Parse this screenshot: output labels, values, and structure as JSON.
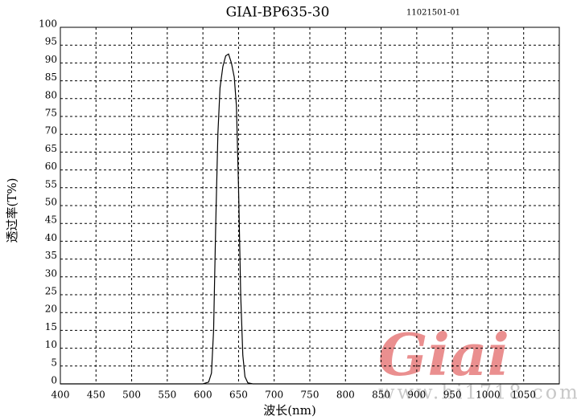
{
  "chart_data": {
    "type": "line",
    "title": "GIAI-BP635-30",
    "subtitle": "11021501-01",
    "x_label": "波长(nm)",
    "y_label": "透过率(T%)",
    "watermark": "Giai",
    "watermark_url": "www.hi1718.com",
    "x": [
      400,
      600,
      608,
      612,
      615,
      618,
      621,
      624,
      628,
      632,
      636,
      640,
      644,
      647,
      650,
      653,
      656,
      659,
      663,
      670,
      1100
    ],
    "series": [
      {
        "name": "T%",
        "color": "#000000",
        "values": [
          0,
          0,
          0.5,
          3,
          15,
          45,
          70,
          83,
          89,
          92,
          92.5,
          90,
          86,
          78,
          55,
          25,
          8,
          2,
          0.3,
          0,
          0
        ]
      }
    ],
    "xlim": [
      400,
      1100
    ],
    "xticks": [
      400,
      450,
      500,
      550,
      600,
      650,
      700,
      750,
      800,
      850,
      900,
      950,
      1000,
      1050
    ],
    "ylim": [
      0,
      100
    ],
    "yticks": [
      0,
      5,
      10,
      15,
      20,
      25,
      30,
      35,
      40,
      45,
      50,
      55,
      60,
      65,
      70,
      75,
      80,
      85,
      90,
      95,
      100
    ],
    "grid": true
  }
}
